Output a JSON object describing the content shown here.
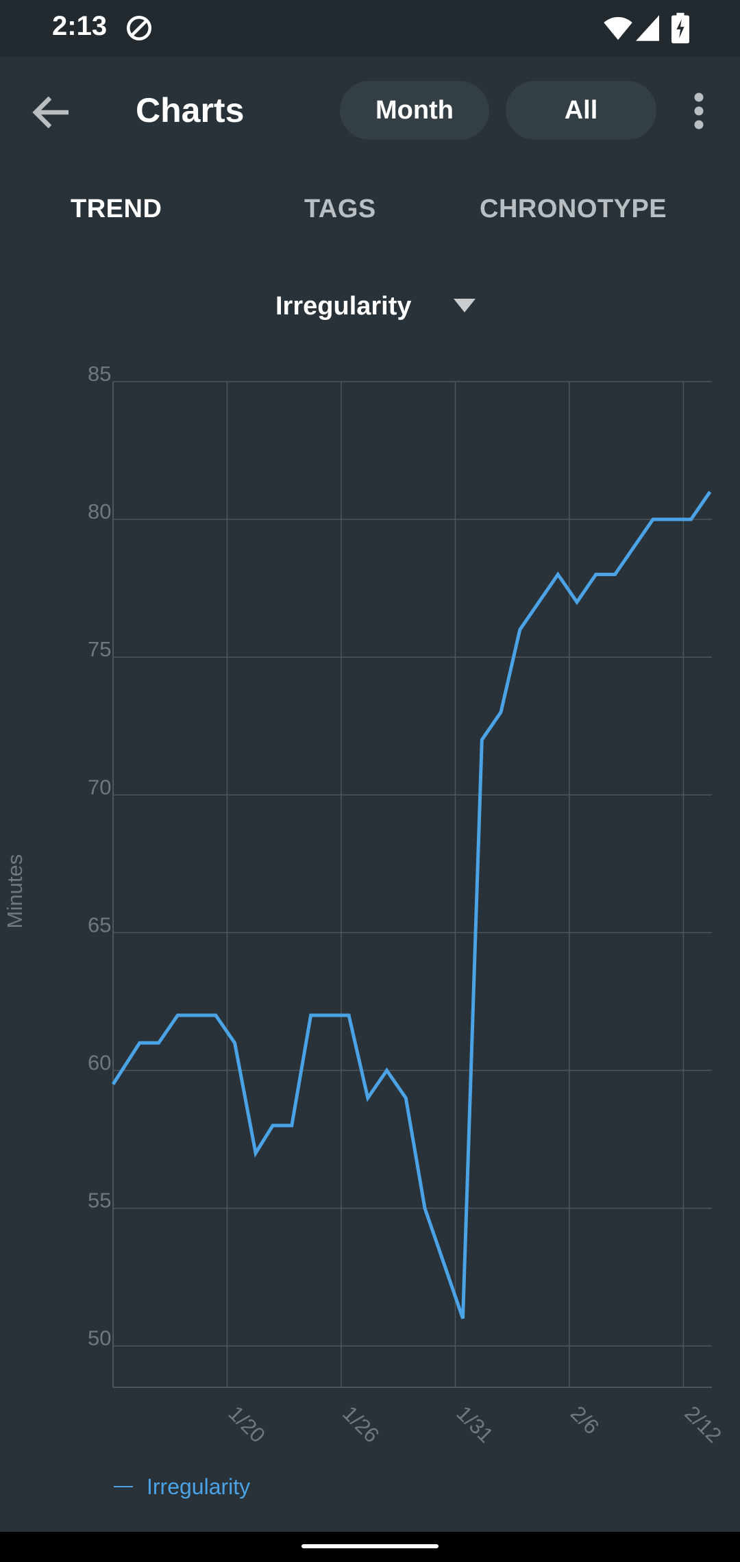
{
  "status_bar": {
    "time": "2:13",
    "icons": [
      "sync-icon",
      "wifi-icon",
      "cell-signal-icon",
      "battery-charging-icon"
    ]
  },
  "app_bar": {
    "back_icon": "arrow-back-icon",
    "title": "Charts",
    "range_month": "Month",
    "range_all": "All",
    "menu_icon": "more-vert-icon"
  },
  "tabs": [
    {
      "label": "TREND",
      "selected": true
    },
    {
      "label": "TAGS",
      "selected": false
    },
    {
      "label": "CHRONOTYPE",
      "selected": false
    }
  ],
  "metric_selector": {
    "label": "Irregularity",
    "icon": "dropdown-arrow-icon"
  },
  "colors": {
    "background": "#283238",
    "status_bar": "#222a2f",
    "pill": "#333f45",
    "series": "#4ba3e6",
    "grid": "#4c565b",
    "axis_text": "#6f787d"
  },
  "chart_data": {
    "type": "line",
    "ylabel": "Minutes",
    "xlabel": "",
    "ylim": [
      48.5,
      85
    ],
    "yticks": [
      50,
      55,
      60,
      65,
      70,
      75,
      80,
      85
    ],
    "x_tick_labels": [
      "1/20",
      "1/26",
      "1/31",
      "2/6",
      "2/12"
    ],
    "x_tick_positions": [
      6,
      12,
      18,
      24,
      30
    ],
    "xlim": [
      0,
      31.5
    ],
    "grid": true,
    "legend_position": "bottom-left",
    "series": [
      {
        "name": "Irregularity",
        "color": "#4ba3e6",
        "x": [
          0,
          1.4,
          2.4,
          3.4,
          4.4,
          5.4,
          6.4,
          7.5,
          8.4,
          9.4,
          10.4,
          11.4,
          12.4,
          13.4,
          14.4,
          15.4,
          16.4,
          17.4,
          18.4,
          19.4,
          20.4,
          21.4,
          22.4,
          23.4,
          24.4,
          25.4,
          26.4,
          27.4,
          28.4,
          29.4,
          30.4,
          31.4
        ],
        "y": [
          59.5,
          61,
          61,
          62,
          62,
          62,
          61,
          57,
          58,
          58,
          62,
          62,
          62,
          59,
          60,
          59,
          55,
          53,
          51,
          72,
          73,
          76,
          77,
          78,
          77,
          78,
          78,
          79,
          80,
          80,
          80,
          81
        ]
      }
    ]
  },
  "legend": {
    "label": "Irregularity"
  }
}
